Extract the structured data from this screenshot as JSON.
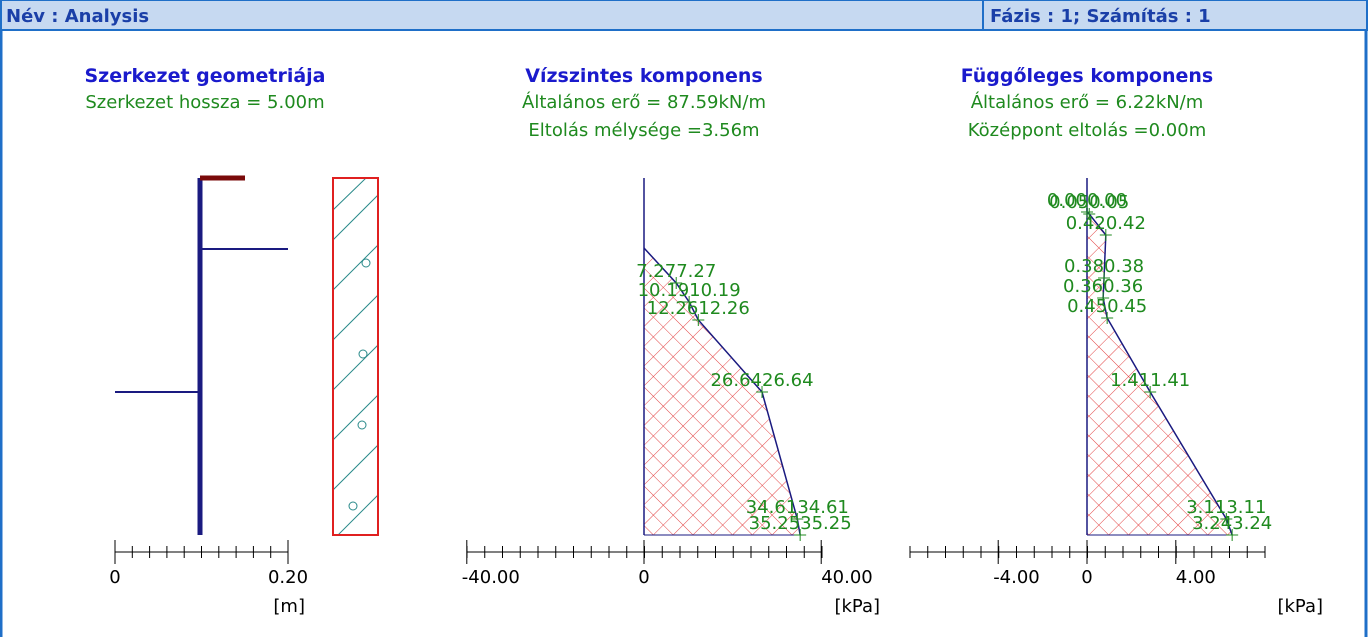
{
  "header": {
    "name": "Név : Analysis",
    "phase": "Fázis : 1; Számítás : 1"
  },
  "geometry": {
    "title": "Szerkezet geometriája",
    "lines": [
      "Szerkezet hossza = 5.00m"
    ],
    "axis": {
      "ticks": [
        "0",
        "0.20"
      ],
      "unit": "[m]"
    }
  },
  "horizontal": {
    "title": "Vízszintes komponens",
    "lines": [
      "Általános erő = 87.59kN/m",
      "Eltolás mélysége =3.56m"
    ],
    "axis": {
      "ticks": [
        "-40.00",
        "0",
        "40.00"
      ],
      "unit": "[kPa]"
    },
    "points": [
      "7.27",
      "10.19",
      "12.26",
      "26.64",
      "34.61",
      "35.25"
    ]
  },
  "vertical": {
    "title": "Függőleges komponens",
    "lines": [
      "Általános erő = 6.22kN/m",
      "Középpont eltolás =0.00m"
    ],
    "axis": {
      "ticks": [
        "-4.00",
        "0",
        "4.00"
      ],
      "unit": "[kPa]"
    },
    "points": [
      "0.00",
      "0.05",
      "0.42",
      "0.38",
      "0.36",
      "0.45",
      "1.41",
      "3.11",
      "3.24"
    ]
  }
}
